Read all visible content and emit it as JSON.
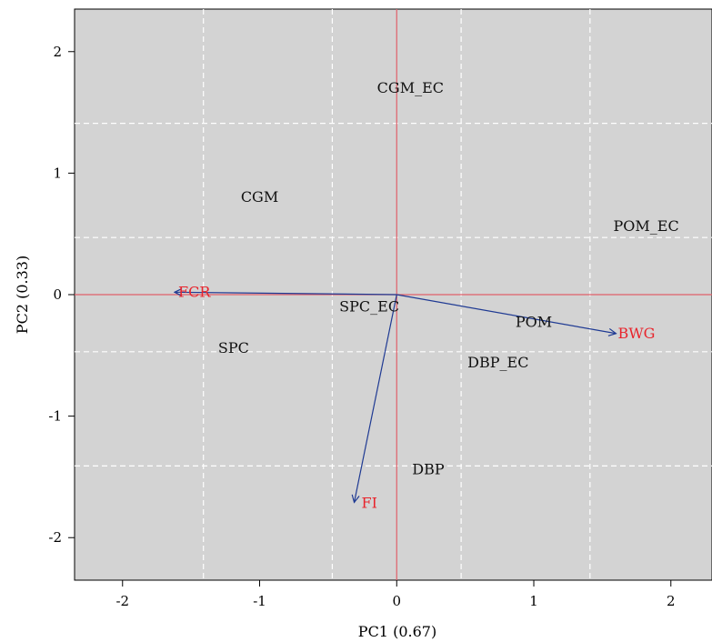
{
  "chart_data": {
    "type": "scatter",
    "subtype": "biplot",
    "xlabel": "PC1 (0.67)",
    "ylabel": "PC2 (0.33)",
    "xlim": [
      -2.35,
      2.3
    ],
    "ylim": [
      -2.35,
      2.35
    ],
    "x_ticks": [
      -2,
      -1,
      0,
      1,
      2
    ],
    "y_ticks": [
      -2,
      -1,
      0,
      1,
      2
    ],
    "minor_grid_x": [
      -1.41,
      -0.47,
      0.47,
      1.41
    ],
    "minor_grid_y": [
      -1.41,
      -0.47,
      0.47,
      1.41
    ],
    "grid": true,
    "background_color": "#d3d3d3",
    "grid_color": "#ffffff",
    "origin_line_color": "#e0606a",
    "vector_color": "#1f3a93",
    "vector_label_color": "#e8242c",
    "points": [
      {
        "label": "CGM_EC",
        "x": 0.1,
        "y": 1.7
      },
      {
        "label": "CGM",
        "x": -1.0,
        "y": 0.8
      },
      {
        "label": "POM_EC",
        "x": 1.82,
        "y": 0.56
      },
      {
        "label": "SPC_EC",
        "x": -0.2,
        "y": -0.1
      },
      {
        "label": "POM",
        "x": 1.0,
        "y": -0.23
      },
      {
        "label": "DBP_EC",
        "x": 0.74,
        "y": -0.56
      },
      {
        "label": "SPC",
        "x": -1.19,
        "y": -0.44
      },
      {
        "label": "DBP",
        "x": 0.23,
        "y": -1.44
      }
    ],
    "vectors": [
      {
        "label": "FCR",
        "x": -1.62,
        "y": 0.02
      },
      {
        "label": "BWG",
        "x": 1.6,
        "y": -0.32
      },
      {
        "label": "FI",
        "x": -0.31,
        "y": -1.71
      }
    ]
  }
}
